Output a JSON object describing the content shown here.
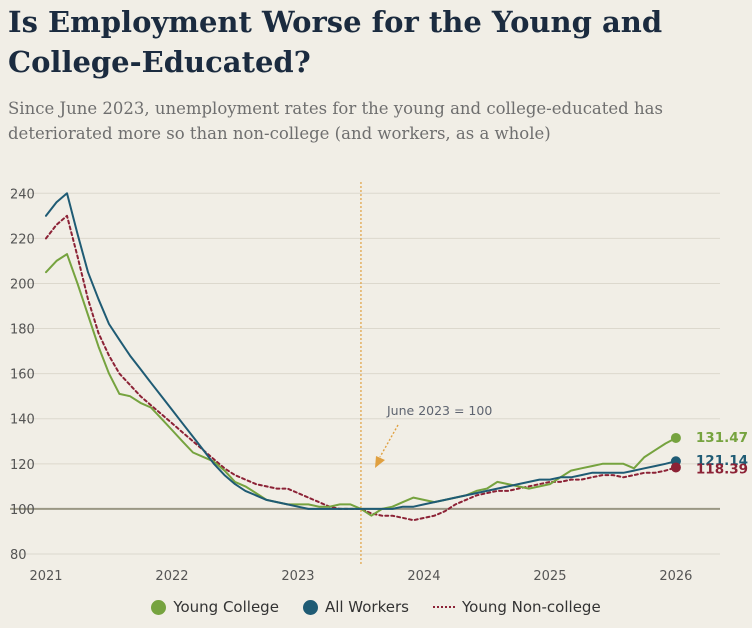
{
  "header": {
    "title": "Is Employment Worse for the Young and College-Educated?",
    "subtitle": "Since June 2023, unemployment rates for the young and college-educated has deteriorated more so than non-college (and workers, as a whole)"
  },
  "chart_data": {
    "type": "line",
    "ylim": [
      80,
      245
    ],
    "xlim": [
      2021,
      2026.35
    ],
    "yticks": [
      80,
      100,
      120,
      140,
      160,
      180,
      200,
      220,
      240
    ],
    "xticks": [
      2021,
      2022,
      2023,
      2024,
      2025,
      2026
    ],
    "xtick_labels": [
      "2021",
      "2022",
      "2023",
      "2024",
      "2025",
      "2026"
    ],
    "baseline": 100,
    "grid": "horizontal",
    "reference_line": {
      "x": 2023.5,
      "label": "June 2023 = 100",
      "color": "#e0a040"
    },
    "legend_position": "bottom",
    "series": [
      {
        "name": "Young College",
        "color": "#76a33f",
        "style": "solid",
        "end_label": "131.47",
        "x": [
          2021,
          2021.083,
          2021.167,
          2021.25,
          2021.333,
          2021.417,
          2021.5,
          2021.583,
          2021.667,
          2021.75,
          2021.833,
          2021.917,
          2022,
          2022.083,
          2022.167,
          2022.25,
          2022.333,
          2022.417,
          2022.5,
          2022.583,
          2022.667,
          2022.75,
          2022.833,
          2022.917,
          2023,
          2023.083,
          2023.167,
          2023.25,
          2023.333,
          2023.417,
          2023.5,
          2023.583,
          2023.667,
          2023.75,
          2023.833,
          2023.917,
          2024,
          2024.083,
          2024.167,
          2024.25,
          2024.333,
          2024.417,
          2024.5,
          2024.583,
          2024.667,
          2024.75,
          2024.833,
          2024.917,
          2025,
          2025.083,
          2025.167,
          2025.25,
          2025.333,
          2025.417,
          2025.5,
          2025.583,
          2025.667,
          2025.75,
          2025.833,
          2025.917,
          2026
        ],
        "values": [
          205,
          210,
          213,
          200,
          186,
          172,
          160,
          151,
          150,
          147,
          145,
          140,
          135,
          130,
          125,
          123,
          121,
          117,
          112,
          110,
          107,
          104,
          103,
          102,
          102,
          102,
          101,
          101,
          102,
          102,
          100,
          97,
          100,
          101,
          103,
          105,
          104,
          103,
          104,
          105,
          106,
          108,
          109,
          112,
          111,
          110,
          109,
          110,
          111,
          114,
          117,
          118,
          119,
          120,
          120,
          120,
          118,
          123,
          126,
          129,
          131.47
        ]
      },
      {
        "name": "All Workers",
        "color": "#1f5b74",
        "style": "solid",
        "end_label": "121.14",
        "x": [
          2021,
          2021.083,
          2021.167,
          2021.25,
          2021.333,
          2021.417,
          2021.5,
          2021.583,
          2021.667,
          2021.75,
          2021.833,
          2021.917,
          2022,
          2022.083,
          2022.167,
          2022.25,
          2022.333,
          2022.417,
          2022.5,
          2022.583,
          2022.667,
          2022.75,
          2022.833,
          2022.917,
          2023,
          2023.083,
          2023.167,
          2023.25,
          2023.333,
          2023.417,
          2023.5,
          2023.583,
          2023.667,
          2023.75,
          2023.833,
          2023.917,
          2024,
          2024.083,
          2024.167,
          2024.25,
          2024.333,
          2024.417,
          2024.5,
          2024.583,
          2024.667,
          2024.75,
          2024.833,
          2024.917,
          2025,
          2025.083,
          2025.167,
          2025.25,
          2025.333,
          2025.417,
          2025.5,
          2025.583,
          2025.667,
          2025.75,
          2025.833,
          2025.917,
          2026
        ],
        "values": [
          230,
          236,
          240,
          222,
          205,
          193,
          182,
          175,
          168,
          162,
          156,
          150,
          144,
          138,
          132,
          126,
          120,
          115,
          111,
          108,
          106,
          104,
          103,
          102,
          101,
          100,
          100,
          100,
          100,
          100,
          100,
          100,
          100,
          100,
          101,
          101,
          102,
          103,
          104,
          105,
          106,
          107,
          108,
          109,
          110,
          111,
          112,
          113,
          113,
          114,
          114,
          115,
          116,
          116,
          116,
          116,
          117,
          118,
          119,
          120,
          121.14
        ]
      },
      {
        "name": "Young Non-college",
        "color": "#8c2236",
        "style": "dotted",
        "end_label": "118.39",
        "x": [
          2021,
          2021.083,
          2021.167,
          2021.25,
          2021.333,
          2021.417,
          2021.5,
          2021.583,
          2021.667,
          2021.75,
          2021.833,
          2021.917,
          2022,
          2022.083,
          2022.167,
          2022.25,
          2022.333,
          2022.417,
          2022.5,
          2022.583,
          2022.667,
          2022.75,
          2022.833,
          2022.917,
          2023,
          2023.083,
          2023.167,
          2023.25,
          2023.333,
          2023.417,
          2023.5,
          2023.583,
          2023.667,
          2023.75,
          2023.833,
          2023.917,
          2024,
          2024.083,
          2024.167,
          2024.25,
          2024.333,
          2024.417,
          2024.5,
          2024.583,
          2024.667,
          2024.75,
          2024.833,
          2024.917,
          2025,
          2025.083,
          2025.167,
          2025.25,
          2025.333,
          2025.417,
          2025.5,
          2025.583,
          2025.667,
          2025.75,
          2025.833,
          2025.917,
          2026
        ],
        "values": [
          220,
          226,
          230,
          212,
          193,
          178,
          168,
          160,
          155,
          150,
          146,
          142,
          138,
          134,
          130,
          126,
          122,
          118,
          115,
          113,
          111,
          110,
          109,
          109,
          107,
          105,
          103,
          101,
          100,
          100,
          100,
          98,
          97,
          97,
          96,
          95,
          96,
          97,
          99,
          102,
          104,
          106,
          107,
          108,
          108,
          109,
          110,
          111,
          112,
          112,
          113,
          113,
          114,
          115,
          115,
          114,
          115,
          116,
          116,
          117,
          118.39
        ]
      }
    ]
  },
  "legend": {
    "items": [
      {
        "label": "Young College",
        "color": "#76a33f"
      },
      {
        "label": "All Workers",
        "color": "#1f5b74"
      },
      {
        "label": "Young Non-college",
        "color": "#8c2236"
      }
    ]
  }
}
